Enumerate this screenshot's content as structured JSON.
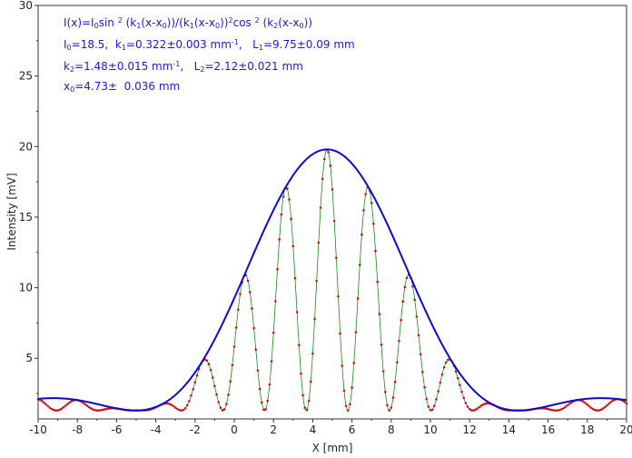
{
  "chart_data": {
    "type": "scatter",
    "xlabel": "X [mm]",
    "ylabel": "Intensity [mV]",
    "xlim": [
      -10,
      20
    ],
    "ylim": [
      0.7,
      30
    ],
    "x_ticks": [
      -10,
      -8,
      -6,
      -4,
      -2,
      0,
      2,
      4,
      6,
      8,
      10,
      12,
      14,
      16,
      18,
      20
    ],
    "y_ticks": [
      5,
      10,
      15,
      20,
      25,
      30
    ],
    "grid": false,
    "params": {
      "I0": 18.5,
      "k1": 0.322,
      "k2": 1.48,
      "x0": 4.73,
      "offset": 1.3
    },
    "annotation": {
      "formula": "I(x)=I0sin 2 (k1(x-x0))/(k1(x-x0))2cos 2 (k2(x-x0))",
      "line2": "I0=18.5, k1=0.322±0.003 mm-1, L1=9.75±0.09 mm",
      "line3": "k2=1.48±0.015 mm-1, L2=2.12±0.021 mm",
      "line4": "x0=4.73± 0.036 mm"
    },
    "series": [
      {
        "name": "",
        "kind": "measured points",
        "color": "#cc1111",
        "x_range": [
          -10,
          20
        ],
        "step": 0.1
      },
      {
        "name": "",
        "kind": "fit (cos^2 term)",
        "color": "#1a8a1a",
        "x_range": [
          -10,
          20
        ]
      },
      {
        "name": "",
        "kind": "envelope sinc^2",
        "color": "#0b0bc8",
        "x_range": [
          -10,
          20
        ]
      }
    ]
  }
}
